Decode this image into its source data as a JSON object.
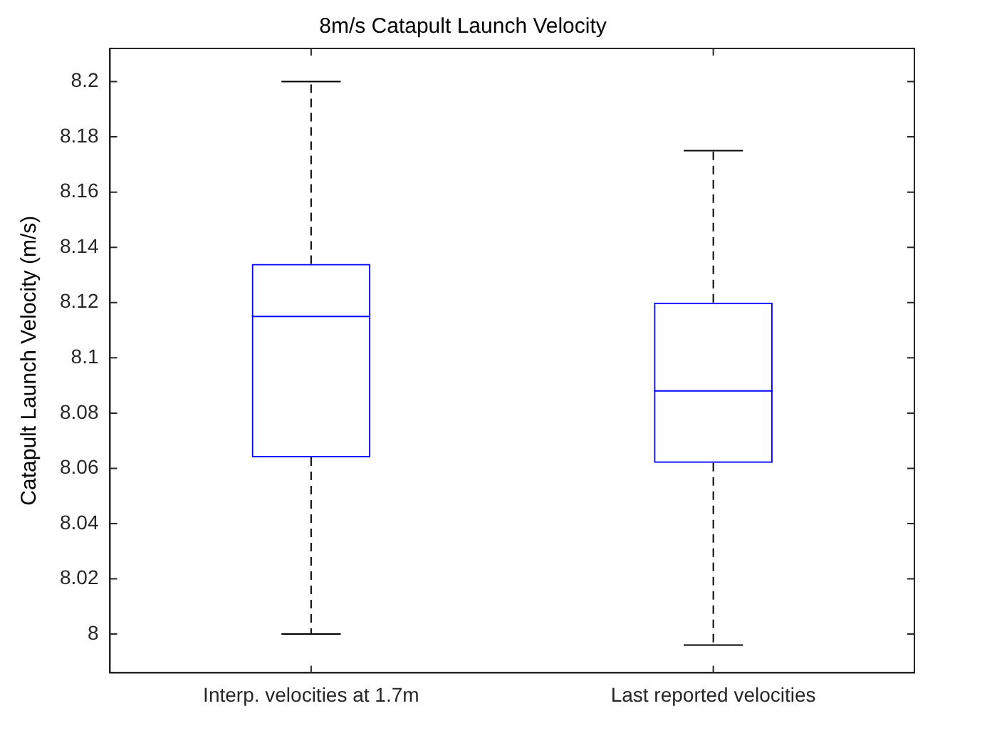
{
  "chart_data": {
    "type": "box",
    "title": "8m/s Catapult Launch Velocity",
    "ylabel": "Catapult Launch Velocity (m/s)",
    "categories": [
      "Interp. velocities at 1.7m",
      "Last reported velocities"
    ],
    "series": [
      {
        "color": "#0000ff",
        "boxes": [
          {
            "low": 8.0,
            "q1": 8.064,
            "median": 8.115,
            "q3": 8.134,
            "high": 8.2
          },
          {
            "low": 7.996,
            "q1": 8.062,
            "median": 8.088,
            "q3": 8.12,
            "high": 8.175
          }
        ]
      }
    ],
    "ylim": [
      7.986,
      8.212
    ],
    "yticks": [
      8,
      8.02,
      8.04,
      8.06,
      8.08,
      8.1,
      8.12,
      8.14,
      8.16,
      8.18,
      8.2
    ],
    "grid": false,
    "legend": false
  }
}
